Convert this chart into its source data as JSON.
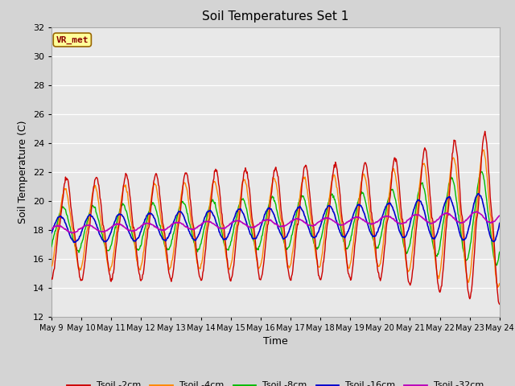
{
  "title": "Soil Temperatures Set 1",
  "xlabel": "Time",
  "ylabel": "Soil Temperature (C)",
  "ylim": [
    12,
    32
  ],
  "yticks": [
    12,
    14,
    16,
    18,
    20,
    22,
    24,
    26,
    28,
    30,
    32
  ],
  "x_labels": [
    "May 9",
    "May 10",
    "May 11",
    "May 12",
    "May 13",
    "May 14",
    "May 15",
    "May 16",
    "May 17",
    "May 18",
    "May 19",
    "May 20",
    "May 21",
    "May 22",
    "May 23",
    "May 24"
  ],
  "annotation_text": "VR_met",
  "colors": {
    "2cm": "#cc0000",
    "4cm": "#ff8800",
    "8cm": "#00bb00",
    "16cm": "#0000cc",
    "32cm": "#bb00bb"
  },
  "fig_bg": "#d4d4d4",
  "plot_bg": "#e8e8e8",
  "grid_color": "#ffffff",
  "legend_labels": [
    "Tsoil -2cm",
    "Tsoil -4cm",
    "Tsoil -8cm",
    "Tsoil -16cm",
    "Tsoil -32cm"
  ]
}
